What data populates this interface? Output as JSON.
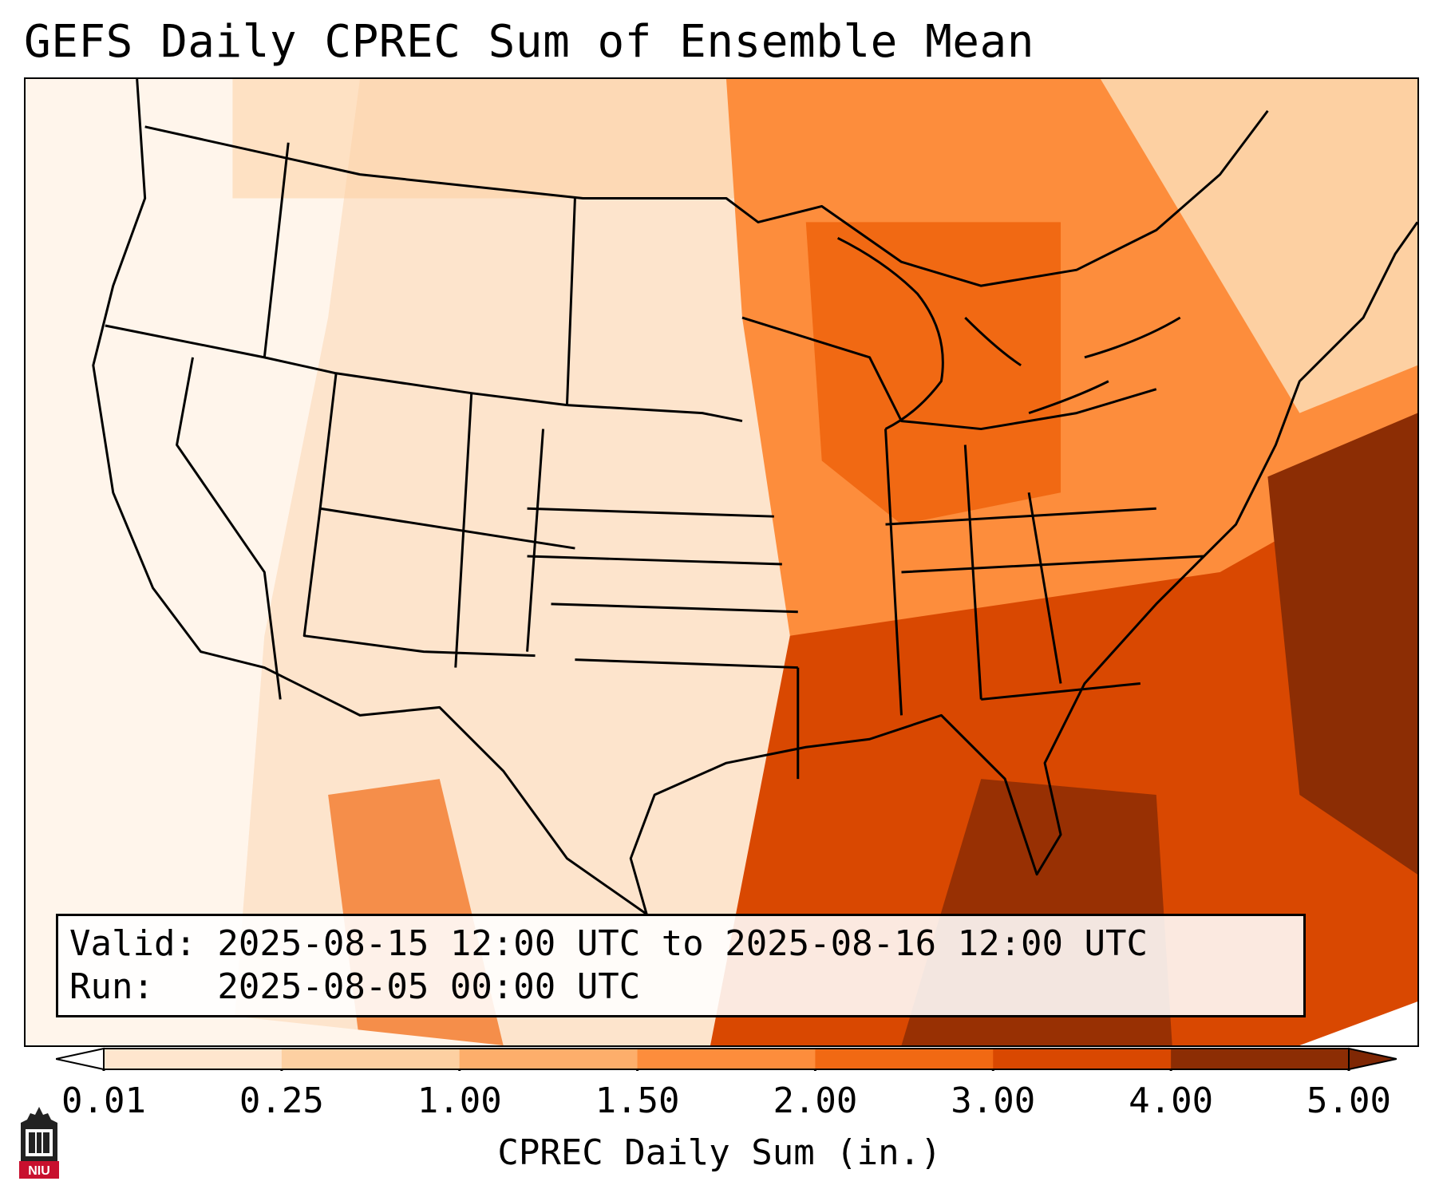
{
  "title": "GEFS Daily CPREC Sum of Ensemble Mean",
  "info": {
    "valid_line": "Valid: 2025-08-15 12:00 UTC to 2025-08-16 12:00 UTC",
    "run_line": "Run:   2025-08-05 00:00 UTC"
  },
  "colorbar": {
    "label": "CPREC Daily Sum (in.)",
    "ticks": [
      "0.01",
      "0.25",
      "1.00",
      "1.50",
      "2.00",
      "3.00",
      "4.00",
      "5.00"
    ],
    "colors": [
      "#fff5eb",
      "#fee6ce",
      "#fdd0a2",
      "#fdae6b",
      "#fd8d3c",
      "#f16913",
      "#d94801",
      "#8c2d04"
    ],
    "under_color": "#ffffff",
    "over_color": "#7f2704",
    "extend": "both"
  },
  "logo": {
    "text": "NIU",
    "colors": {
      "primary": "#c8102e",
      "dark": "#222222"
    }
  },
  "palette": {
    "border": "#000000",
    "frame_background": "#fdebdc"
  }
}
